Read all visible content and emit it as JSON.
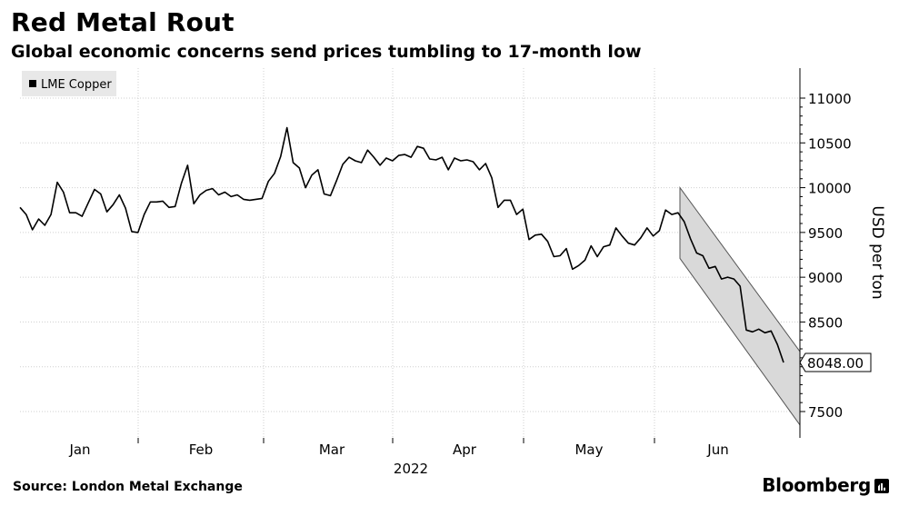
{
  "header": {
    "title": "Red Metal Rout",
    "subtitle": "Global economic concerns send prices tumbling to 17-month low"
  },
  "footer": {
    "source": "Source: London Metal Exchange",
    "brand": "Bloomberg",
    "brand_icon": "bloomberg-terminal-icon"
  },
  "chart_data": {
    "type": "line",
    "title": "Red Metal Rout",
    "subtitle": "Global economic concerns send prices tumbling to 17-month low",
    "ylabel": "USD per ton",
    "xlabel": "2022",
    "ylim": [
      7250,
      11350
    ],
    "yticks": [
      7500,
      8000,
      8500,
      9000,
      9500,
      10000,
      10500,
      11000
    ],
    "month_labels": [
      "Jan",
      "Feb",
      "Mar",
      "Apr",
      "May",
      "Jun"
    ],
    "year_label": "2022",
    "grid": true,
    "legend": "top-left",
    "last_value_label": "8048.00",
    "line_color": "#000000",
    "channel_fill": "#d9d9d9",
    "series": [
      {
        "name": "LME Copper",
        "values": [
          9780,
          9700,
          9530,
          9650,
          9580,
          9700,
          10060,
          9950,
          9720,
          9720,
          9680,
          9830,
          9980,
          9930,
          9730,
          9810,
          9920,
          9770,
          9510,
          9500,
          9700,
          9840,
          9840,
          9850,
          9780,
          9790,
          10050,
          10250,
          9820,
          9920,
          9970,
          9990,
          9920,
          9950,
          9900,
          9920,
          9870,
          9860,
          9870,
          9880,
          10070,
          10160,
          10350,
          10670,
          10280,
          10220,
          10000,
          10140,
          10200,
          9930,
          9910,
          10080,
          10260,
          10340,
          10300,
          10280,
          10420,
          10340,
          10250,
          10330,
          10300,
          10360,
          10370,
          10340,
          10460,
          10440,
          10320,
          10310,
          10340,
          10200,
          10330,
          10300,
          10310,
          10290,
          10200,
          10270,
          10110,
          9780,
          9860,
          9860,
          9700,
          9760,
          9420,
          9470,
          9480,
          9400,
          9230,
          9240,
          9320,
          9090,
          9130,
          9190,
          9350,
          9230,
          9340,
          9360,
          9550,
          9460,
          9380,
          9360,
          9440,
          9550,
          9460,
          9520,
          9750,
          9700,
          9720,
          9620,
          9430,
          9270,
          9240,
          9100,
          9120,
          8980,
          9000,
          8980,
          8900,
          8410,
          8390,
          8420,
          8380,
          8400,
          8250,
          8048
        ]
      }
    ],
    "trend_channel": {
      "upper_start": 10000,
      "upper_end": 8170,
      "lower_start": 9210,
      "lower_end": 7350
    }
  }
}
